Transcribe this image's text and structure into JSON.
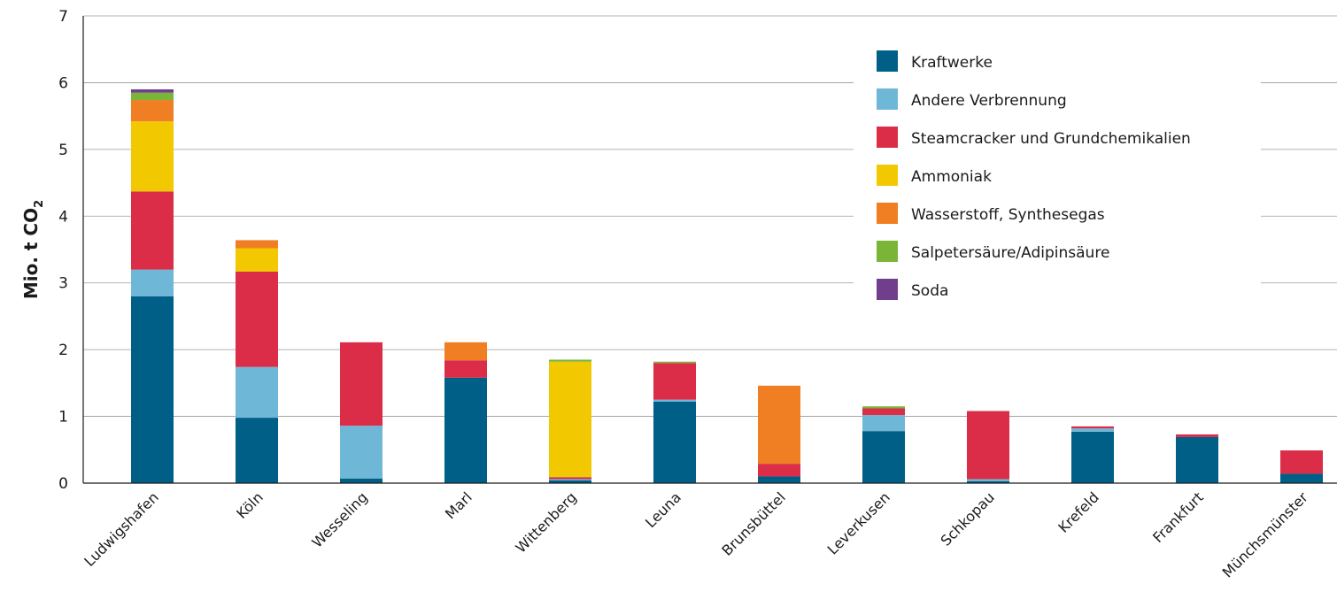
{
  "chart_data": {
    "type": "bar",
    "stacked": true,
    "title": "",
    "xlabel": "",
    "ylabel": "Mio. t CO",
    "ylabel_subscript": "2",
    "ylim": [
      0,
      7
    ],
    "yticks": [
      0,
      1,
      2,
      3,
      4,
      5,
      6,
      7
    ],
    "grid": "horizontal",
    "legend_position": "top-right",
    "categories": [
      "Ludwigshafen",
      "Köln",
      "Wesseling",
      "Marl",
      "Wittenberg",
      "Leuna",
      "Brunsbüttel",
      "Leverkusen",
      "Schkopau",
      "Krefeld",
      "Frankfurt",
      "Münchsmünster"
    ],
    "series": [
      {
        "name": "Kraftwerke",
        "color": "#005f87",
        "values": [
          2.8,
          0.98,
          0.07,
          1.58,
          0.04,
          1.22,
          0.1,
          0.78,
          0.03,
          0.77,
          0.69,
          0.14
        ]
      },
      {
        "name": "Andere Verbrennung",
        "color": "#6fb7d6",
        "values": [
          0.4,
          0.76,
          0.79,
          0.0,
          0.02,
          0.03,
          0.0,
          0.24,
          0.03,
          0.05,
          0.0,
          0.0
        ]
      },
      {
        "name": "Steamcracker und Grundchemikalien",
        "color": "#db2d48",
        "values": [
          1.17,
          1.43,
          1.25,
          0.26,
          0.03,
          0.55,
          0.19,
          0.1,
          1.02,
          0.03,
          0.04,
          0.35
        ]
      },
      {
        "name": "Ammoniak",
        "color": "#f2c900",
        "values": [
          1.05,
          0.35,
          0.0,
          0.0,
          1.73,
          0.0,
          0.0,
          0.0,
          0.0,
          0.0,
          0.0,
          0.0
        ]
      },
      {
        "name": "Wasserstoff, Synthesegas",
        "color": "#f07e22",
        "values": [
          0.32,
          0.12,
          0.0,
          0.27,
          0.0,
          0.0,
          1.17,
          0.0,
          0.0,
          0.0,
          0.0,
          0.0
        ]
      },
      {
        "name": "Salpetersäure/Adipinsäure",
        "color": "#7ab538",
        "values": [
          0.11,
          0.0,
          0.0,
          0.0,
          0.03,
          0.02,
          0.0,
          0.03,
          0.0,
          0.0,
          0.0,
          0.0
        ]
      },
      {
        "name": "Soda",
        "color": "#713e8e",
        "values": [
          0.05,
          0.0,
          0.0,
          0.0,
          0.0,
          0.0,
          0.0,
          0.0,
          0.0,
          0.0,
          0.0,
          0.0
        ]
      }
    ]
  }
}
